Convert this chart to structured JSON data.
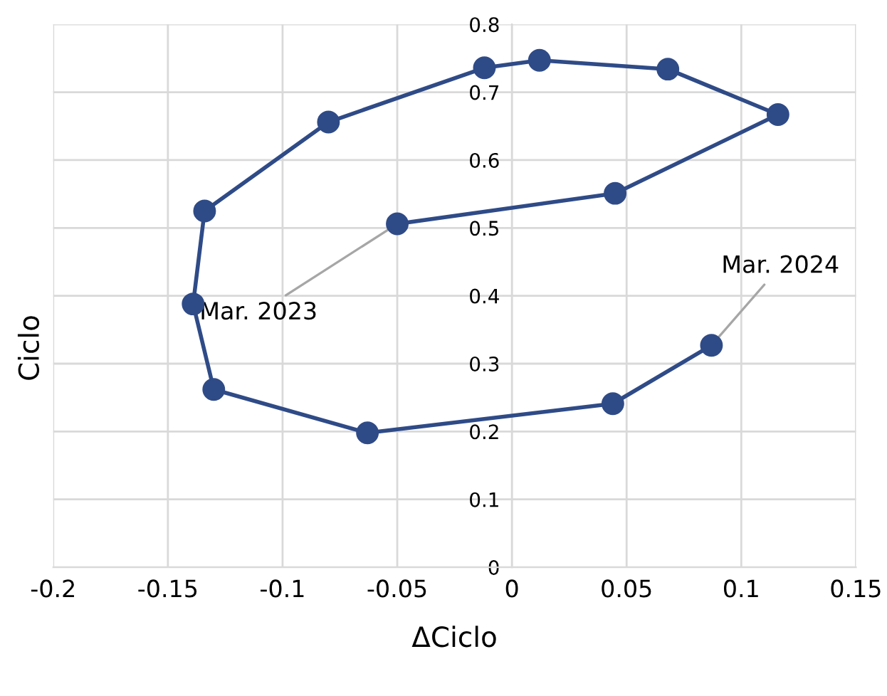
{
  "chart_data": {
    "type": "line",
    "xlabel": "ΔCiclo",
    "ylabel": "Ciclo",
    "x": [
      -0.05,
      0.045,
      0.116,
      0.068,
      0.012,
      -0.012,
      -0.08,
      -0.134,
      -0.139,
      -0.13,
      -0.063,
      0.044,
      0.087
    ],
    "series": [
      {
        "color": "#2f4b87",
        "values": [
          0.506,
          0.551,
          0.667,
          0.734,
          0.747,
          0.736,
          0.656,
          0.525,
          0.388,
          0.262,
          0.198,
          0.241,
          0.327
        ]
      }
    ],
    "marker": "circle",
    "line_style": "solid",
    "grid": true,
    "xlim": [
      -0.2,
      0.15
    ],
    "xticks": [
      -0.2,
      -0.15,
      -0.1,
      -0.05,
      0,
      0.05,
      0.1,
      0.15
    ],
    "ylim": [
      0,
      0.8
    ],
    "yticks": [
      0,
      0.1,
      0.2,
      0.3,
      0.4,
      0.5,
      0.6,
      0.7,
      0.8
    ],
    "annotations": [
      {
        "text": "Mar. 2023",
        "x": -0.05,
        "y": 0.506
      },
      {
        "text": "Mar. 2024",
        "x": 0.087,
        "y": 0.327
      }
    ]
  }
}
